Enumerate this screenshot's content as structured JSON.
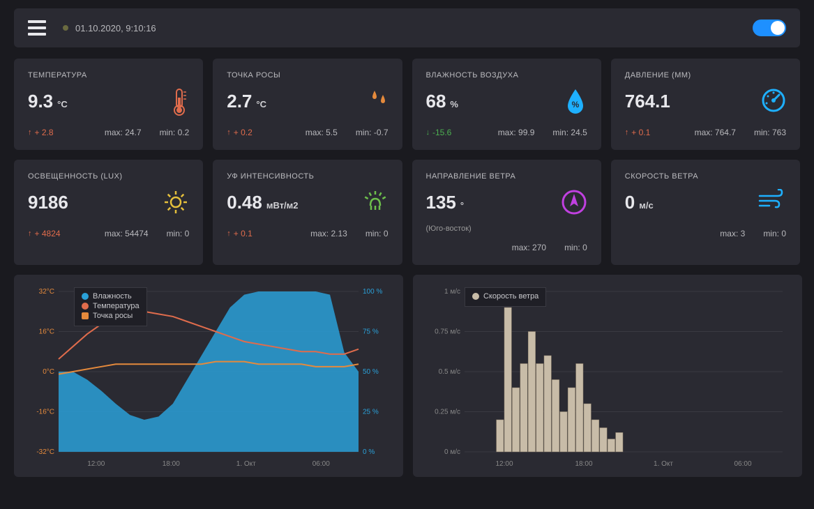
{
  "header": {
    "timestamp": "01.10.2020, 9:10:16",
    "toggle_on": true
  },
  "cards": [
    {
      "id": "temperature",
      "title": "ТЕМПЕРАТУРА",
      "value": "9.3",
      "unit": "°C",
      "delta": "+ 2.8",
      "delta_dir": "up",
      "max": "max: 24.7",
      "min": "min: 0.2",
      "icon": "thermometer",
      "icon_color": "#e06c4c"
    },
    {
      "id": "dewpoint",
      "title": "ТОЧКА РОСЫ",
      "value": "2.7",
      "unit": "°C",
      "delta": "+ 0.2",
      "delta_dir": "up",
      "max": "max: 5.5",
      "min": "min: -0.7",
      "icon": "droplets",
      "icon_color": "#e58a3c"
    },
    {
      "id": "humidity",
      "title": "ВЛАЖНОСТЬ ВОЗДУХА",
      "value": "68",
      "unit": "%",
      "delta": "-15.6",
      "delta_dir": "down",
      "max": "max: 99.9",
      "min": "min: 24.5",
      "icon": "humidity",
      "icon_color": "#1eb0ff"
    },
    {
      "id": "pressure",
      "title": "ДАВЛЕНИЕ (ММ)",
      "value": "764.1",
      "unit": "",
      "delta": "+ 0.1",
      "delta_dir": "up",
      "max": "max: 764.7",
      "min": "min: 763",
      "icon": "gauge",
      "icon_color": "#1eb0ff"
    },
    {
      "id": "lux",
      "title": "ОСВЕЩЕННОСТЬ (LUX)",
      "value": "9186",
      "unit": "",
      "delta": "+ 4824",
      "delta_dir": "up",
      "max": "max: 54474",
      "min": "min: 0",
      "icon": "sun",
      "icon_color": "#e5c03c"
    },
    {
      "id": "uv",
      "title": "УФ ИНТЕНСИВНОСТЬ",
      "value": "0.48",
      "unit": "мВт/м2",
      "delta": "+ 0.1",
      "delta_dir": "up",
      "max": "max: 2.13",
      "min": "min: 0",
      "icon": "uv",
      "icon_color": "#6dc04c"
    },
    {
      "id": "winddir",
      "title": "НАПРАВЛЕНИЕ ВЕТРА",
      "value": "135",
      "unit": "°",
      "sub": "(Юго-восток)",
      "delta": "",
      "delta_dir": "",
      "max": "max: 270",
      "min": "min: 0",
      "icon": "compass",
      "icon_color": "#c040e0"
    },
    {
      "id": "windspeed",
      "title": "СКОРОСТЬ ВЕТРА",
      "value": "0",
      "unit": "м/с",
      "delta": "",
      "delta_dir": "",
      "max": "max: 3",
      "min": "min: 0",
      "icon": "wind",
      "icon_color": "#1eb0ff"
    }
  ],
  "chart_left": {
    "type": "area-line-combo",
    "background": "#2a2a32",
    "legend": [
      {
        "label": "Влажность",
        "color": "#2aa0d8",
        "shape": "circle"
      },
      {
        "label": "Температура",
        "color": "#e06c4c",
        "shape": "circle"
      },
      {
        "label": "Точка росы",
        "color": "#e58a3c",
        "shape": "square"
      }
    ],
    "left_axis": {
      "ticks": [
        "32°C",
        "16°C",
        "0°C",
        "-16°C",
        "-32°C"
      ],
      "color": "#e58a3c",
      "ylim": [
        -32,
        32
      ]
    },
    "right_axis": {
      "ticks": [
        "100 %",
        "75 %",
        "50 %",
        "25 %",
        "0 %"
      ],
      "color": "#2aa0d8",
      "ylim": [
        0,
        100
      ]
    },
    "x_ticks": [
      "12:00",
      "18:00",
      "1. Окт",
      "06:00"
    ],
    "humidity_area_color": "#2aa0d8",
    "humidity_values": [
      50,
      50,
      45,
      38,
      30,
      23,
      20,
      22,
      30,
      45,
      60,
      75,
      90,
      98,
      100,
      100,
      100,
      100,
      100,
      98,
      62,
      50
    ],
    "temperature_line_color": "#e06c4c",
    "temperature_values": [
      5,
      10,
      15,
      19,
      22,
      24,
      24,
      23,
      22,
      20,
      18,
      16,
      14,
      12,
      11,
      10,
      9,
      8,
      8,
      7,
      7,
      9
    ],
    "dewpoint_line_color": "#e58a3c",
    "dewpoint_values": [
      -1,
      0,
      1,
      2,
      3,
      3,
      3,
      3,
      3,
      3,
      3,
      4,
      4,
      4,
      3,
      3,
      3,
      3,
      2,
      2,
      2,
      3
    ]
  },
  "chart_right": {
    "type": "bar",
    "background": "#2a2a32",
    "legend": [
      {
        "label": "Скорость ветра",
        "color": "#c8bca8",
        "shape": "circle"
      }
    ],
    "y_ticks": [
      "1 м/с",
      "0.75 м/с",
      "0.5 м/с",
      "0.25 м/с",
      "0 м/с"
    ],
    "ylim": [
      0,
      1
    ],
    "x_ticks": [
      "12:00",
      "18:00",
      "1. Окт",
      "06:00"
    ],
    "bar_color": "#c8bca8",
    "bar_border": "#8a7d68",
    "bars": [
      0,
      0,
      0,
      0,
      0.2,
      0.9,
      0.4,
      0.55,
      0.75,
      0.55,
      0.6,
      0.45,
      0.25,
      0.4,
      0.55,
      0.3,
      0.2,
      0.15,
      0.08,
      0.12,
      0,
      0,
      0,
      0,
      0,
      0,
      0,
      0,
      0,
      0,
      0,
      0,
      0,
      0,
      0,
      0,
      0,
      0,
      0,
      0
    ]
  },
  "colors": {
    "bg": "#1a1a1f",
    "panel": "#2a2a32",
    "text": "#c8c8cc",
    "accent_orange": "#e06c4c",
    "accent_blue": "#1eb0ff",
    "grid": "#3a3a42"
  }
}
